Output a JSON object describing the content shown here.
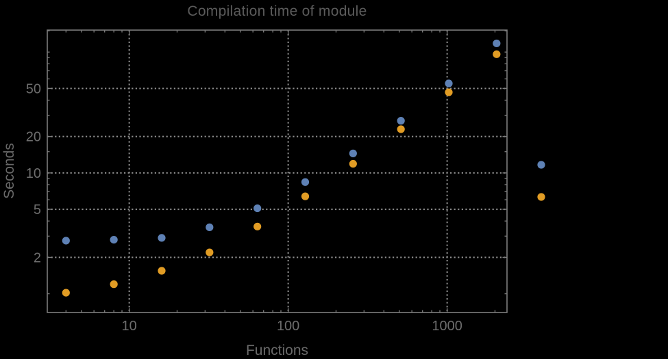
{
  "title": "Compilation time of module",
  "colors": {
    "background": "#000000",
    "frame": "#7d7d7d",
    "grid": "#8f8f8f",
    "title_text": "#5b5b5b",
    "tick_text": "#6d6d6d",
    "axis_label_text": "#696969",
    "series1": "#5e81b5",
    "series2": "#e19c24"
  },
  "chart_data": {
    "type": "scatter",
    "title": "Compilation time of module",
    "xlabel": "Functions",
    "ylabel": "Seconds",
    "x_scale": "log",
    "y_scale": "log",
    "grid": "dotted",
    "x_range": [
      3.05,
      2380
    ],
    "y_range": [
      0.7,
      152
    ],
    "x_ticks_labeled": [
      10,
      100,
      1000
    ],
    "y_ticks_labeled": [
      2,
      5,
      10,
      20,
      50
    ],
    "x": [
      4,
      8,
      16,
      32,
      64,
      128,
      256,
      512,
      1024,
      2048
    ],
    "series": [
      {
        "color": "#5e81b5",
        "values": [
          2.75,
          2.8,
          2.9,
          3.55,
          5.1,
          8.4,
          14.5,
          27,
          55,
          118
        ]
      },
      {
        "color": "#e19c24",
        "values": [
          1.02,
          1.2,
          1.55,
          2.2,
          3.6,
          6.4,
          11.9,
          23,
          46.5,
          96
        ]
      }
    ],
    "legend_position": "right-of-plot",
    "legend_markers": [
      {
        "color": "#5e81b5"
      },
      {
        "color": "#e19c24"
      }
    ]
  }
}
